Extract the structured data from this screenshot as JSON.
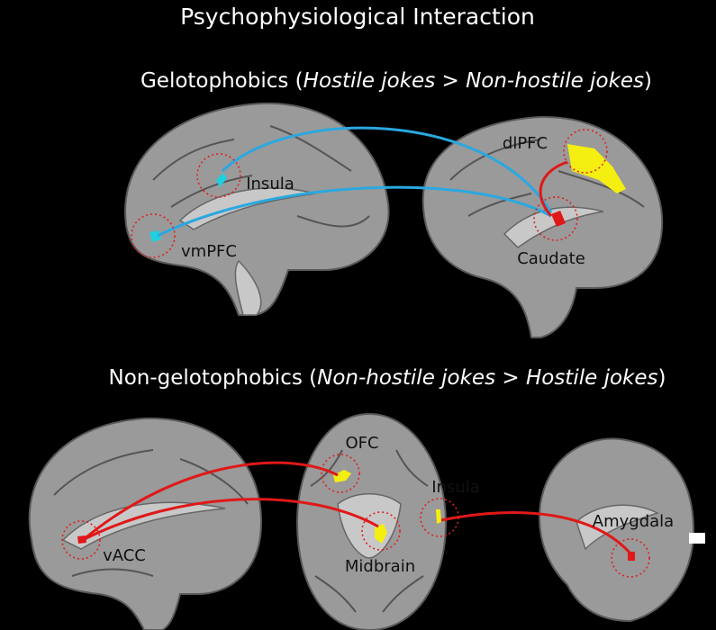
{
  "title": "Psychophysiological Interaction",
  "sections": [
    {
      "heading": {
        "prefix": "Gelotophobics (",
        "contrast": "Hostile jokes > Non-hostile jokes",
        "suffix": ")"
      },
      "regions": [
        "Insula",
        "vmPFC",
        "dlPFC",
        "Caudate"
      ]
    },
    {
      "heading": {
        "prefix": "Non-gelotophobics (",
        "contrast": "Non-hostile jokes > Hostile jokes",
        "suffix": ")"
      },
      "regions": [
        "vACC",
        "OFC",
        "Insula",
        "Midbrain",
        "Amygdala"
      ]
    }
  ]
}
